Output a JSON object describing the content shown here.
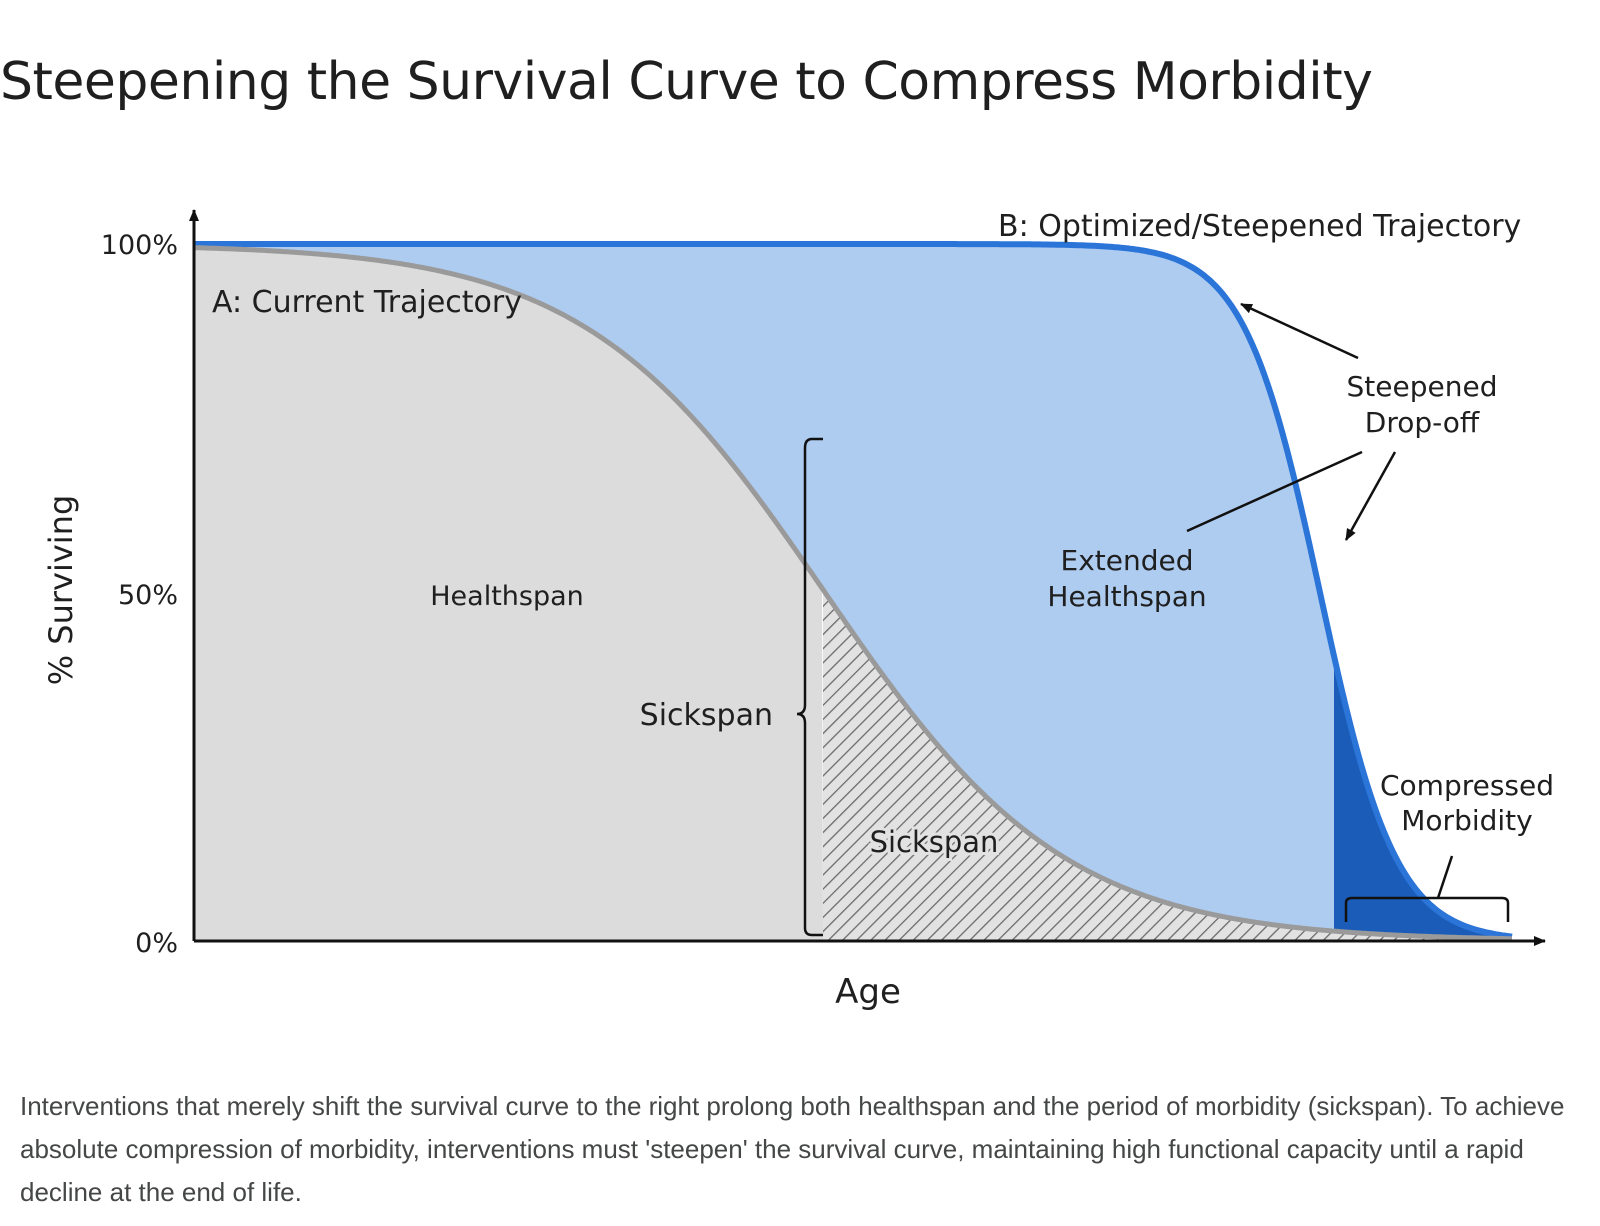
{
  "title": "Steepening the Survival Curve to Compress Morbidity",
  "caption": "Interventions that merely shift the survival curve to the right prolong both healthspan and the period of morbidity (sickspan). To achieve absolute compression of morbidity, interventions must 'steepen' the survival curve, maintaining high functional capacity until a rapid decline at the end of life.",
  "colors": {
    "healthspan_fill": "#dcdcdc",
    "extended_fill": "#aecbf0",
    "compressed_fill": "#1a5cb8",
    "current_curve": "#9a9a9a",
    "optimized_curve": "#2b74d8"
  },
  "chart_data": {
    "type": "area",
    "xlabel": "Age",
    "ylabel": "% Surviving",
    "y_ticks": [
      "100%",
      "50%",
      "0%"
    ],
    "series": [
      {
        "name": "A: Current Trajectory",
        "midpoint_age_fraction": 0.62,
        "shape": "gradual decline"
      },
      {
        "name": "B: Optimized/Steepened Trajectory",
        "midpoint_age_fraction": 0.87,
        "shape": "steep late decline"
      }
    ],
    "regions": {
      "healthspan": "Healthspan",
      "sickspan": "Sickspan",
      "extended_healthspan": "Extended Healthspan",
      "compressed_morbidity": "Compressed Morbidity"
    },
    "annotations": {
      "steepened_dropoff": "Steepened Drop-off",
      "sickspan_bracket": "Sickspan"
    }
  }
}
